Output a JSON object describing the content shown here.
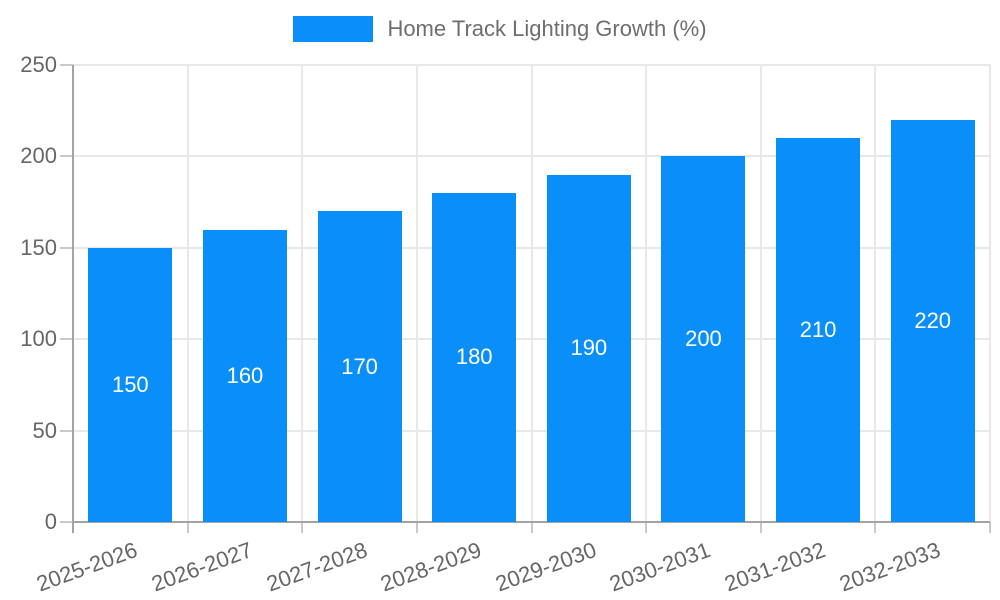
{
  "legend": {
    "label": "Home Track Lighting Growth (%)"
  },
  "colors": {
    "bar": "#0a8ffa",
    "axis_text": "#666666",
    "legend_text": "#6e6e6e",
    "grid": "#e8e8e8",
    "axis_line": "#a3a3a3",
    "value_label": "#ffffff",
    "background": "#ffffff"
  },
  "chart_data": {
    "type": "bar",
    "title": "Home Track Lighting Growth (%)",
    "categories": [
      "2025-2026",
      "2026-2027",
      "2027-2028",
      "2028-2029",
      "2029-2030",
      "2030-2031",
      "2031-2032",
      "2032-2033"
    ],
    "values": [
      150,
      160,
      170,
      180,
      190,
      200,
      210,
      220
    ],
    "xlabel": "",
    "ylabel": "",
    "ylim": [
      0,
      250
    ],
    "yticks": [
      0,
      50,
      100,
      150,
      200,
      250
    ],
    "grid": true,
    "legend_position": "top",
    "value_labels_position": "inside-center",
    "x_label_rotation_deg": -20
  }
}
